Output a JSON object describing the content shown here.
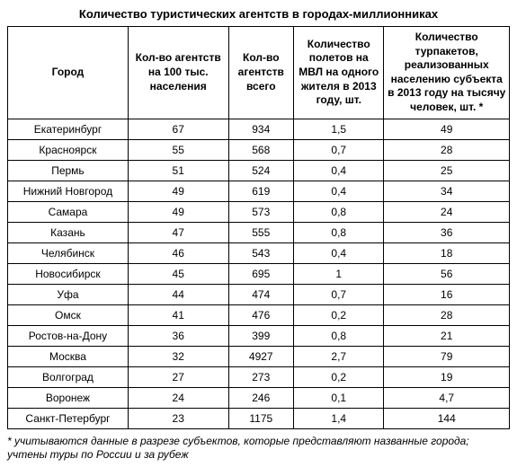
{
  "title": "Количество туристических агентств в городах-миллионниках",
  "columns": [
    "Город",
    "Кол-во агентств на 100 тыс. населения",
    "Кол-во агентств всего",
    "Количество полетов на МВЛ на одного жителя в 2013 году, шт.",
    "Количество турпакетов, реализованных населению субъекта в 2013 году на тысячу человек, шт. *"
  ],
  "rows": [
    {
      "city": "Екатеринбург",
      "per100k": "67",
      "total": "934",
      "flights": "1,5",
      "packages": "49"
    },
    {
      "city": "Красноярск",
      "per100k": "55",
      "total": "568",
      "flights": "0,7",
      "packages": "28"
    },
    {
      "city": "Пермь",
      "per100k": "51",
      "total": "524",
      "flights": "0,4",
      "packages": "25"
    },
    {
      "city": "Нижний Новгород",
      "per100k": "49",
      "total": "619",
      "flights": "0,4",
      "packages": "34"
    },
    {
      "city": "Самара",
      "per100k": "49",
      "total": "573",
      "flights": "0,8",
      "packages": "24"
    },
    {
      "city": "Казань",
      "per100k": "47",
      "total": "555",
      "flights": "0,8",
      "packages": "36"
    },
    {
      "city": "Челябинск",
      "per100k": "46",
      "total": "543",
      "flights": "0,4",
      "packages": "18"
    },
    {
      "city": "Новосибирск",
      "per100k": "45",
      "total": "695",
      "flights": "1",
      "packages": "56"
    },
    {
      "city": "Уфа",
      "per100k": "44",
      "total": "474",
      "flights": "0,7",
      "packages": "16"
    },
    {
      "city": "Омск",
      "per100k": "41",
      "total": "476",
      "flights": "0,2",
      "packages": "28"
    },
    {
      "city": "Ростов-на-Дону",
      "per100k": "36",
      "total": "399",
      "flights": "0,8",
      "packages": "21"
    },
    {
      "city": "Москва",
      "per100k": "32",
      "total": "4927",
      "flights": "2,7",
      "packages": "79"
    },
    {
      "city": "Волгоград",
      "per100k": "27",
      "total": "273",
      "flights": "0,2",
      "packages": "19"
    },
    {
      "city": "Воронеж",
      "per100k": "24",
      "total": "246",
      "flights": "0,1",
      "packages": "4,7"
    },
    {
      "city": "Санкт-Петербург",
      "per100k": "23",
      "total": "1175",
      "flights": "1,4",
      "packages": "144"
    }
  ],
  "footnote": "* учитываются данные в разрезе субъектов, которые представляют названные города; учтены туры по России и за рубеж",
  "style": {
    "type": "table",
    "background_color": "#ffffff",
    "border_color": "#000000",
    "text_color": "#000000",
    "title_fontsize": 13,
    "cell_fontsize": 12,
    "footnote_fontsize": 12,
    "col_widths_pct": [
      24,
      20,
      13,
      18,
      25
    ]
  }
}
